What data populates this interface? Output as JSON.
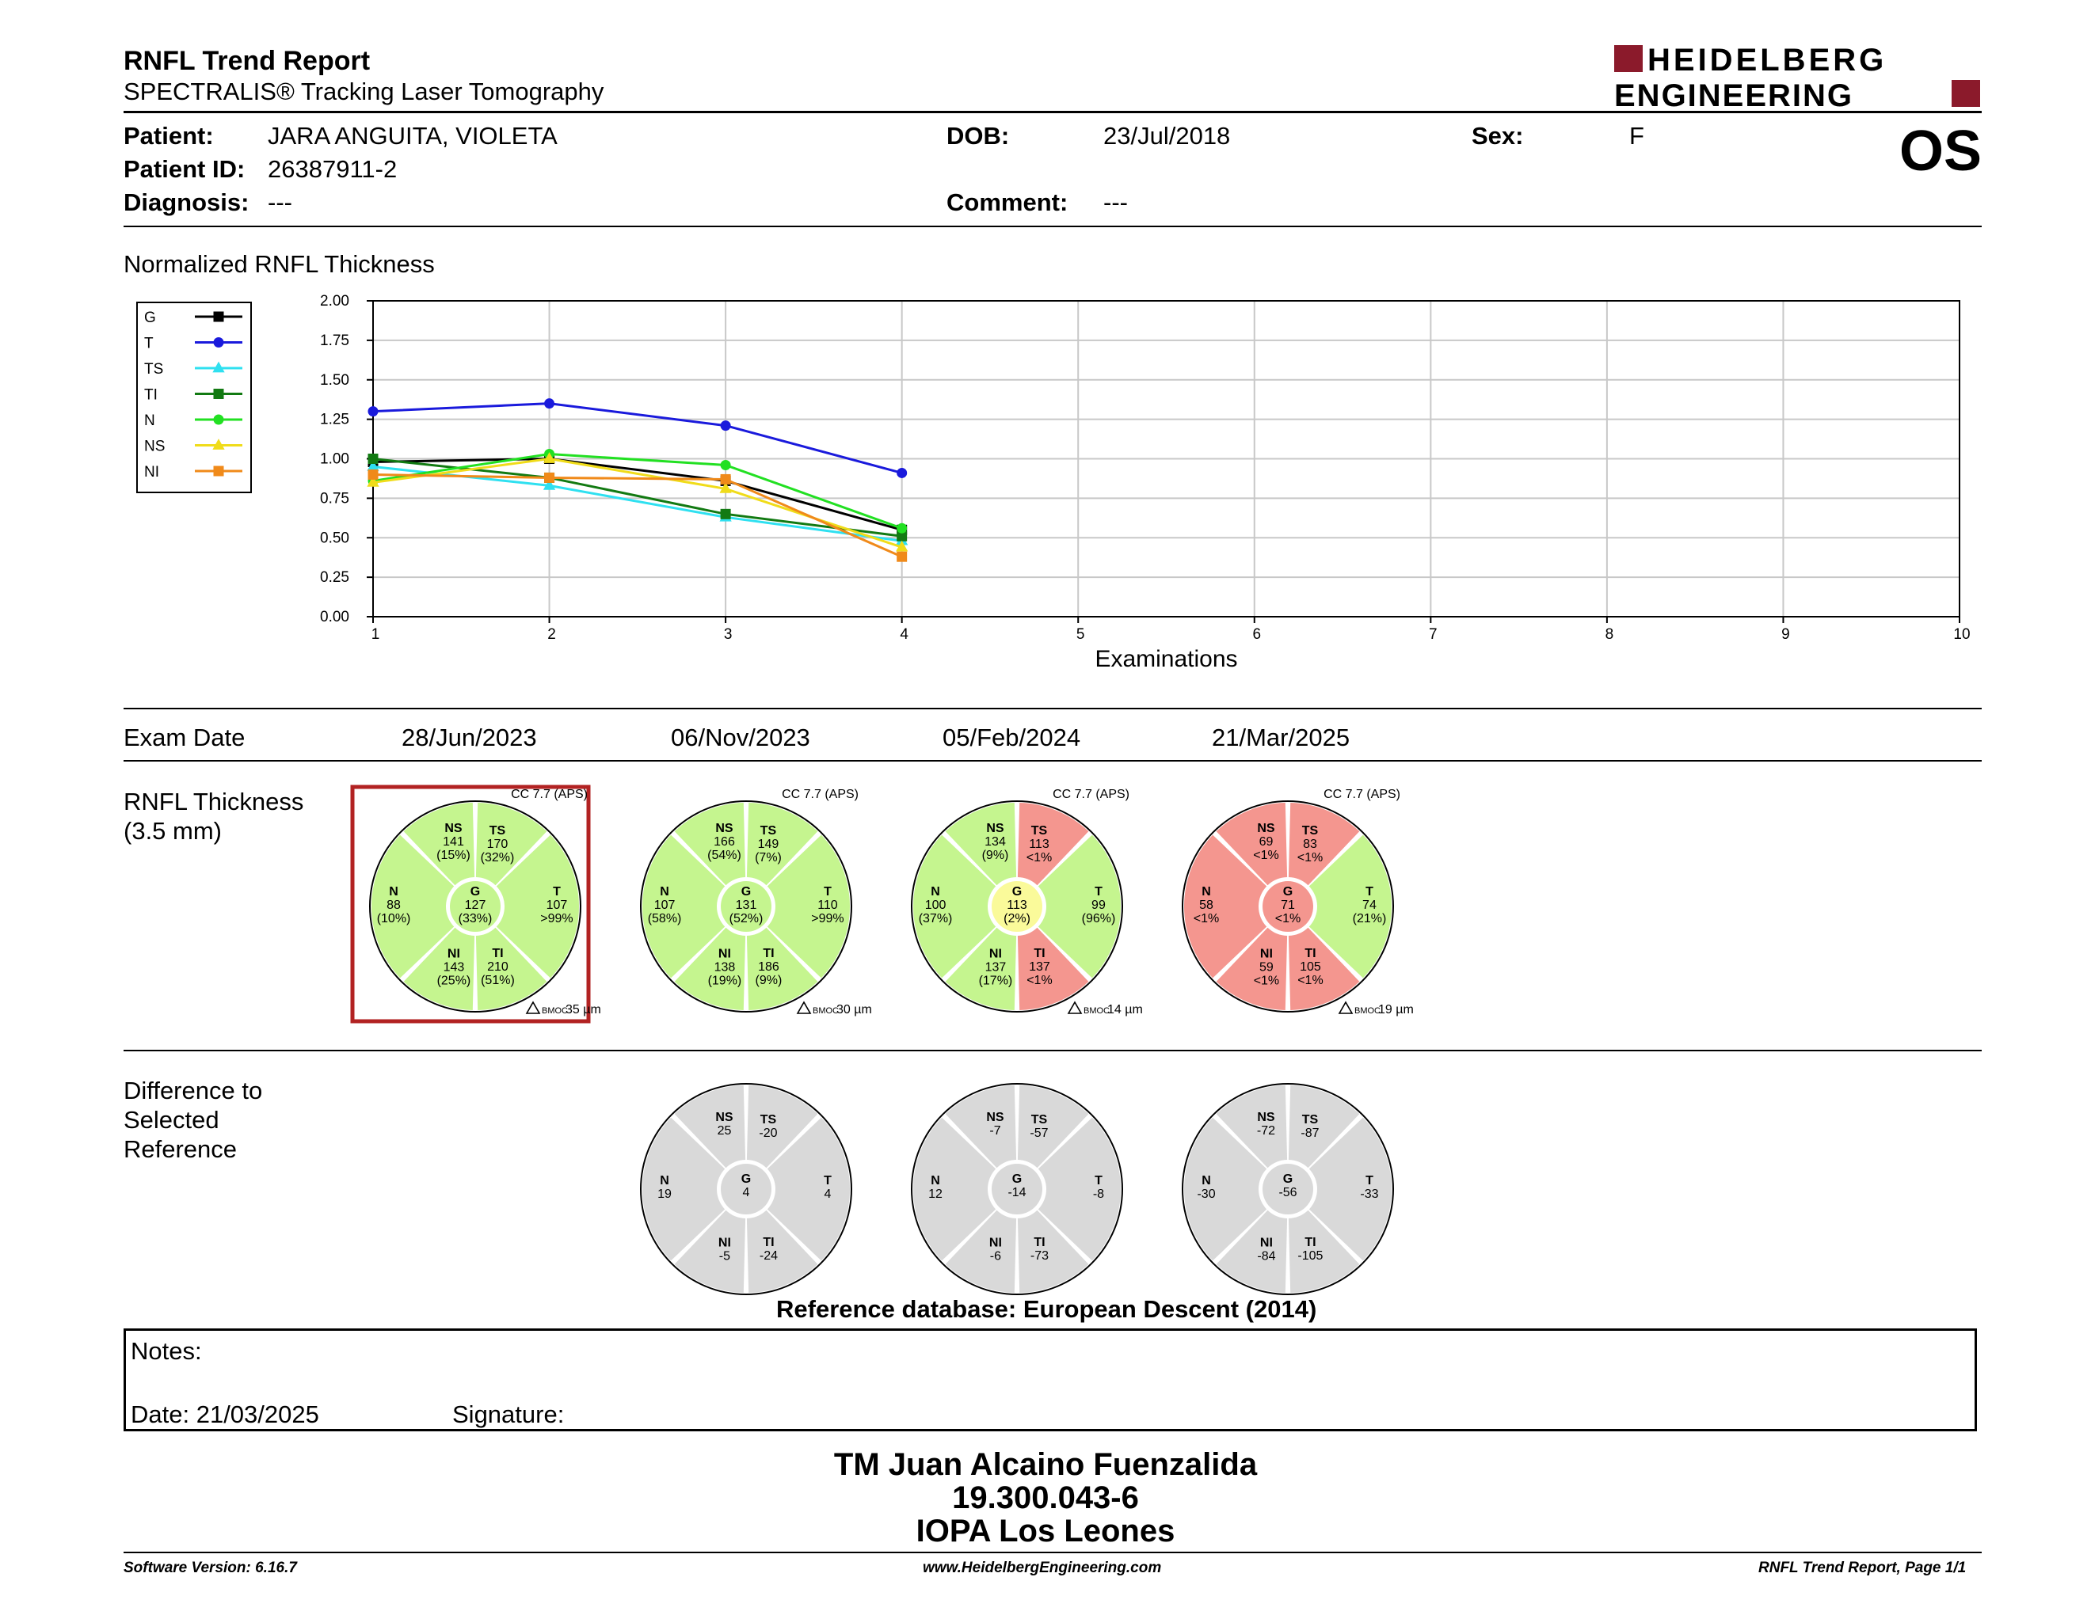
{
  "header": {
    "title": "RNFL Trend Report",
    "subtitle": "SPECTRALIS® Tracking Laser Tomography",
    "logo_line1": "HEIDELBERG",
    "logo_line2": "ENGINEERING",
    "eye": "OS"
  },
  "patient": {
    "name_label": "Patient:",
    "name": "JARA ANGUITA, VIOLETA",
    "id_label": "Patient ID:",
    "id": "26387911-2",
    "diagnosis_label": "Diagnosis:",
    "diagnosis": "---",
    "dob_label": "DOB:",
    "dob": "23/Jul/2018",
    "comment_label": "Comment:",
    "comment": "---",
    "sex_label": "Sex:",
    "sex": "F"
  },
  "chart_section_title": "Normalized RNFL Thickness",
  "chart_data": {
    "type": "line",
    "xlabel": "Examinations",
    "ylabel": "",
    "xlim": [
      1,
      10
    ],
    "ylim": [
      0,
      2
    ],
    "x_ticks": [
      "1",
      "2",
      "3",
      "4",
      "5",
      "6",
      "7",
      "8",
      "9",
      "10"
    ],
    "y_ticks": [
      "0.00",
      "0.25",
      "0.50",
      "0.75",
      "1.00",
      "1.25",
      "1.50",
      "1.75",
      "2.00"
    ],
    "grid": true,
    "legend_position": "left",
    "x": [
      1,
      2,
      3,
      4
    ],
    "series": [
      {
        "name": "G",
        "color": "#000000",
        "marker": "square",
        "values": [
          0.98,
          1.0,
          0.86,
          0.55
        ]
      },
      {
        "name": "T",
        "color": "#1a1adc",
        "marker": "circle",
        "values": [
          1.3,
          1.35,
          1.21,
          0.91
        ]
      },
      {
        "name": "TS",
        "color": "#2fe0f0",
        "marker": "triangle",
        "values": [
          0.95,
          0.83,
          0.63,
          0.48
        ]
      },
      {
        "name": "TI",
        "color": "#127a12",
        "marker": "square",
        "values": [
          1.0,
          0.88,
          0.65,
          0.51
        ]
      },
      {
        "name": "N",
        "color": "#22e022",
        "marker": "circle",
        "values": [
          0.86,
          1.03,
          0.96,
          0.56
        ]
      },
      {
        "name": "NS",
        "color": "#f0dc1a",
        "marker": "triangle",
        "values": [
          0.85,
          1.0,
          0.81,
          0.44
        ]
      },
      {
        "name": "NI",
        "color": "#f08a1a",
        "marker": "square",
        "values": [
          0.9,
          0.88,
          0.87,
          0.38
        ]
      }
    ]
  },
  "exam_date_label": "Exam Date",
  "exam_dates": [
    "28/Jun/2023",
    "06/Nov/2023",
    "05/Feb/2024",
    "21/Mar/2025"
  ],
  "thickness_label_line1": "RNFL Thickness",
  "thickness_label_line2": "(3.5 mm)",
  "colors": {
    "green": "#c5f58f",
    "yellow": "#fafa9a",
    "red": "#f4968f",
    "gray": "#d9d9d9",
    "selected_border": "#b22222"
  },
  "thickness_charts": [
    {
      "cc": "CC 7.7 (APS)",
      "bmoc": "BMOC",
      "bmoc_value": "35 µm",
      "selected": true,
      "G": {
        "label": "G",
        "value": "127",
        "pct": "(33%)",
        "status": "green"
      },
      "T": {
        "label": "T",
        "value": "107",
        "pct": ">99%",
        "status": "green"
      },
      "TS": {
        "label": "TS",
        "value": "170",
        "pct": "(32%)",
        "status": "green"
      },
      "TI": {
        "label": "TI",
        "value": "210",
        "pct": "(51%)",
        "status": "green"
      },
      "N": {
        "label": "N",
        "value": "88",
        "pct": "(10%)",
        "status": "green"
      },
      "NS": {
        "label": "NS",
        "value": "141",
        "pct": "(15%)",
        "status": "green"
      },
      "NI": {
        "label": "NI",
        "value": "143",
        "pct": "(25%)",
        "status": "green"
      }
    },
    {
      "cc": "CC 7.7 (APS)",
      "bmoc": "BMOC",
      "bmoc_value": "30 µm",
      "selected": false,
      "G": {
        "label": "G",
        "value": "131",
        "pct": "(52%)",
        "status": "green"
      },
      "T": {
        "label": "T",
        "value": "110",
        "pct": ">99%",
        "status": "green"
      },
      "TS": {
        "label": "TS",
        "value": "149",
        "pct": "(7%)",
        "status": "green"
      },
      "TI": {
        "label": "TI",
        "value": "186",
        "pct": "(9%)",
        "status": "green"
      },
      "N": {
        "label": "N",
        "value": "107",
        "pct": "(58%)",
        "status": "green"
      },
      "NS": {
        "label": "NS",
        "value": "166",
        "pct": "(54%)",
        "status": "green"
      },
      "NI": {
        "label": "NI",
        "value": "138",
        "pct": "(19%)",
        "status": "green"
      }
    },
    {
      "cc": "CC 7.7 (APS)",
      "bmoc": "BMOC",
      "bmoc_value": "14 µm",
      "selected": false,
      "G": {
        "label": "G",
        "value": "113",
        "pct": "(2%)",
        "status": "yellow"
      },
      "T": {
        "label": "T",
        "value": "99",
        "pct": "(96%)",
        "status": "green"
      },
      "TS": {
        "label": "TS",
        "value": "113",
        "pct": "<1%",
        "status": "red"
      },
      "TI": {
        "label": "TI",
        "value": "137",
        "pct": "<1%",
        "status": "red"
      },
      "N": {
        "label": "N",
        "value": "100",
        "pct": "(37%)",
        "status": "green"
      },
      "NS": {
        "label": "NS",
        "value": "134",
        "pct": "(9%)",
        "status": "green"
      },
      "NI": {
        "label": "NI",
        "value": "137",
        "pct": "(17%)",
        "status": "green"
      }
    },
    {
      "cc": "CC 7.7 (APS)",
      "bmoc": "BMOC",
      "bmoc_value": "19 µm",
      "selected": false,
      "G": {
        "label": "G",
        "value": "71",
        "pct": "<1%",
        "status": "red"
      },
      "T": {
        "label": "T",
        "value": "74",
        "pct": "(21%)",
        "status": "green"
      },
      "TS": {
        "label": "TS",
        "value": "83",
        "pct": "<1%",
        "status": "red"
      },
      "TI": {
        "label": "TI",
        "value": "105",
        "pct": "<1%",
        "status": "red"
      },
      "N": {
        "label": "N",
        "value": "58",
        "pct": "<1%",
        "status": "red"
      },
      "NS": {
        "label": "NS",
        "value": "69",
        "pct": "<1%",
        "status": "red"
      },
      "NI": {
        "label": "NI",
        "value": "59",
        "pct": "<1%",
        "status": "red"
      }
    }
  ],
  "difference_label_line1": "Difference to",
  "difference_label_line2": "Selected",
  "difference_label_line3": "Reference",
  "difference_charts": [
    {
      "G": {
        "label": "G",
        "value": "4",
        "status": "gray"
      },
      "T": {
        "label": "T",
        "value": "4",
        "status": "gray"
      },
      "TS": {
        "label": "TS",
        "value": "-20",
        "status": "gray"
      },
      "TI": {
        "label": "TI",
        "value": "-24",
        "status": "gray"
      },
      "N": {
        "label": "N",
        "value": "19",
        "status": "gray"
      },
      "NS": {
        "label": "NS",
        "value": "25",
        "status": "gray"
      },
      "NI": {
        "label": "NI",
        "value": "-5",
        "status": "gray"
      }
    },
    {
      "G": {
        "label": "G",
        "value": "-14",
        "status": "gray"
      },
      "T": {
        "label": "T",
        "value": "-8",
        "status": "gray"
      },
      "TS": {
        "label": "TS",
        "value": "-57",
        "status": "gray"
      },
      "TI": {
        "label": "TI",
        "value": "-73",
        "status": "gray"
      },
      "N": {
        "label": "N",
        "value": "12",
        "status": "gray"
      },
      "NS": {
        "label": "NS",
        "value": "-7",
        "status": "gray"
      },
      "NI": {
        "label": "NI",
        "value": "-6",
        "status": "gray"
      }
    },
    {
      "G": {
        "label": "G",
        "value": "-56",
        "status": "gray"
      },
      "T": {
        "label": "T",
        "value": "-33",
        "status": "gray"
      },
      "TS": {
        "label": "TS",
        "value": "-87",
        "status": "gray"
      },
      "TI": {
        "label": "TI",
        "value": "-105",
        "status": "gray"
      },
      "N": {
        "label": "N",
        "value": "-30",
        "status": "gray"
      },
      "NS": {
        "label": "NS",
        "value": "-72",
        "status": "gray"
      },
      "NI": {
        "label": "NI",
        "value": "-84",
        "status": "gray"
      }
    }
  ],
  "reference_db": "Reference database: European Descent (2014)",
  "notes": {
    "label": "Notes:",
    "date": "Date: 21/03/2025",
    "signature": "Signature:"
  },
  "signer": {
    "line1": "TM Juan Alcaino Fuenzalida",
    "line2": "19.300.043-6",
    "line3": "IOPA Los Leones"
  },
  "footer": {
    "version": "Software Version: 6.16.7",
    "website": "www.HeidelbergEngineering.com",
    "page": "RNFL Trend Report, Page 1/1"
  }
}
